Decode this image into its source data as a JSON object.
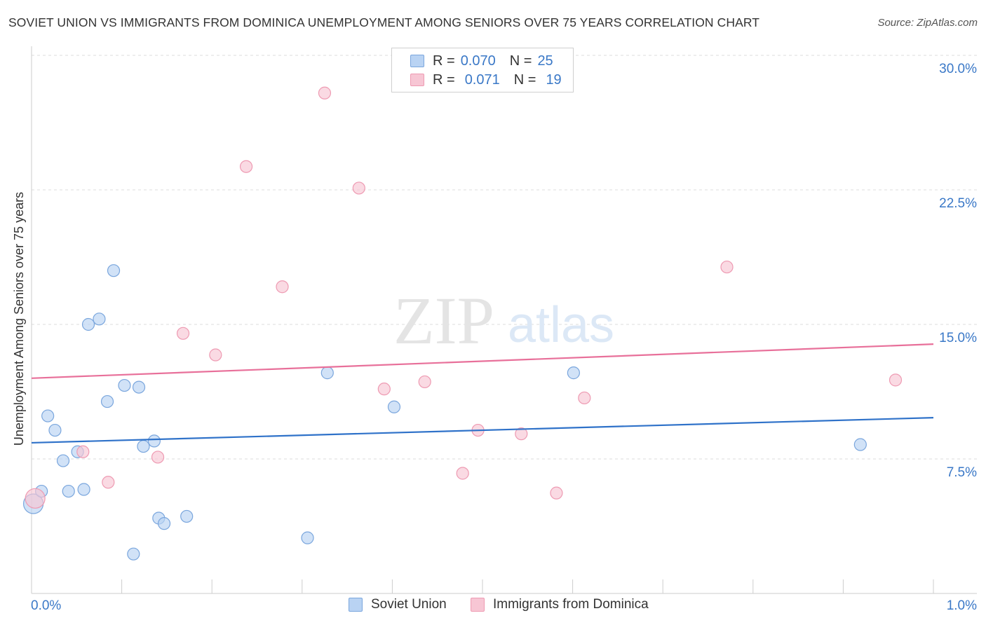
{
  "header": {
    "title": "SOVIET UNION VS IMMIGRANTS FROM DOMINICA UNEMPLOYMENT AMONG SENIORS OVER 75 YEARS CORRELATION CHART",
    "source": "Source: ZipAtlas.com"
  },
  "watermark": {
    "zip": "ZIP",
    "atlas": "atlas"
  },
  "legend": {
    "rows": [
      {
        "r_label": "R =",
        "r_value": "0.070",
        "n_label": "N =",
        "n_value": "25"
      },
      {
        "r_label": "R =",
        "r_value": "0.071",
        "n_label": "N =",
        "n_value": "19"
      }
    ],
    "series_names": [
      "Soviet Union",
      "Immigrants from Dominica"
    ]
  },
  "colors": {
    "blue_fill": "#b9d3f3",
    "blue_stroke": "#7aa6dd",
    "blue_line": "#2f72c9",
    "pink_fill": "#f7c6d4",
    "pink_stroke": "#ee9ab2",
    "pink_line": "#e8709a",
    "axis_label": "#3a78c7",
    "grid": "#dddddd"
  },
  "chart_data": {
    "type": "scatter",
    "title": "SOVIET UNION VS IMMIGRANTS FROM DOMINICA UNEMPLOYMENT AMONG SENIORS OVER 75 YEARS CORRELATION CHART",
    "xlabel": "",
    "ylabel": "Unemployment Among Seniors over 75 years",
    "xlim": [
      0.0,
      1.0
    ],
    "ylim": [
      0.0,
      31.0
    ],
    "x_tick_labels": [
      "0.0%",
      "1.0%"
    ],
    "y_ticks": [
      7.5,
      15.0,
      22.5,
      30.0
    ],
    "y_tick_labels": [
      "7.5%",
      "15.0%",
      "22.5%",
      "30.0%"
    ],
    "grid": true,
    "series": [
      {
        "name": "Soviet Union",
        "r": 0.07,
        "n": 25,
        "trend": {
          "y_at_x0": 8.4,
          "y_at_x1": 9.8
        },
        "points": [
          {
            "x": 0.002,
            "y": 5.0,
            "big": true
          },
          {
            "x": 0.011,
            "y": 5.7
          },
          {
            "x": 0.018,
            "y": 9.9
          },
          {
            "x": 0.026,
            "y": 9.1
          },
          {
            "x": 0.035,
            "y": 7.4
          },
          {
            "x": 0.041,
            "y": 5.7
          },
          {
            "x": 0.051,
            "y": 7.9
          },
          {
            "x": 0.058,
            "y": 5.8
          },
          {
            "x": 0.063,
            "y": 15.0
          },
          {
            "x": 0.075,
            "y": 15.3
          },
          {
            "x": 0.084,
            "y": 10.7
          },
          {
            "x": 0.091,
            "y": 18.0
          },
          {
            "x": 0.103,
            "y": 11.6
          },
          {
            "x": 0.119,
            "y": 11.5
          },
          {
            "x": 0.124,
            "y": 8.2
          },
          {
            "x": 0.113,
            "y": 2.2
          },
          {
            "x": 0.136,
            "y": 8.5
          },
          {
            "x": 0.141,
            "y": 4.2
          },
          {
            "x": 0.147,
            "y": 3.9
          },
          {
            "x": 0.172,
            "y": 4.3
          },
          {
            "x": 0.306,
            "y": 3.1
          },
          {
            "x": 0.328,
            "y": 12.3
          },
          {
            "x": 0.402,
            "y": 10.4
          },
          {
            "x": 0.601,
            "y": 12.3
          },
          {
            "x": 0.919,
            "y": 8.3
          }
        ]
      },
      {
        "name": "Immigrants from Dominica",
        "r": 0.071,
        "n": 19,
        "trend": {
          "y_at_x0": 12.0,
          "y_at_x1": 13.9
        },
        "points": [
          {
            "x": 0.004,
            "y": 5.3,
            "big": true
          },
          {
            "x": 0.057,
            "y": 7.9
          },
          {
            "x": 0.085,
            "y": 6.2
          },
          {
            "x": 0.14,
            "y": 7.6
          },
          {
            "x": 0.168,
            "y": 14.5
          },
          {
            "x": 0.204,
            "y": 13.3
          },
          {
            "x": 0.238,
            "y": 23.8
          },
          {
            "x": 0.278,
            "y": 17.1
          },
          {
            "x": 0.325,
            "y": 27.9
          },
          {
            "x": 0.363,
            "y": 22.6
          },
          {
            "x": 0.391,
            "y": 11.4
          },
          {
            "x": 0.436,
            "y": 11.8
          },
          {
            "x": 0.478,
            "y": 6.7
          },
          {
            "x": 0.495,
            "y": 9.1
          },
          {
            "x": 0.543,
            "y": 8.9
          },
          {
            "x": 0.582,
            "y": 5.6
          },
          {
            "x": 0.613,
            "y": 10.9
          },
          {
            "x": 0.771,
            "y": 18.2
          },
          {
            "x": 0.958,
            "y": 11.9
          }
        ]
      }
    ]
  }
}
